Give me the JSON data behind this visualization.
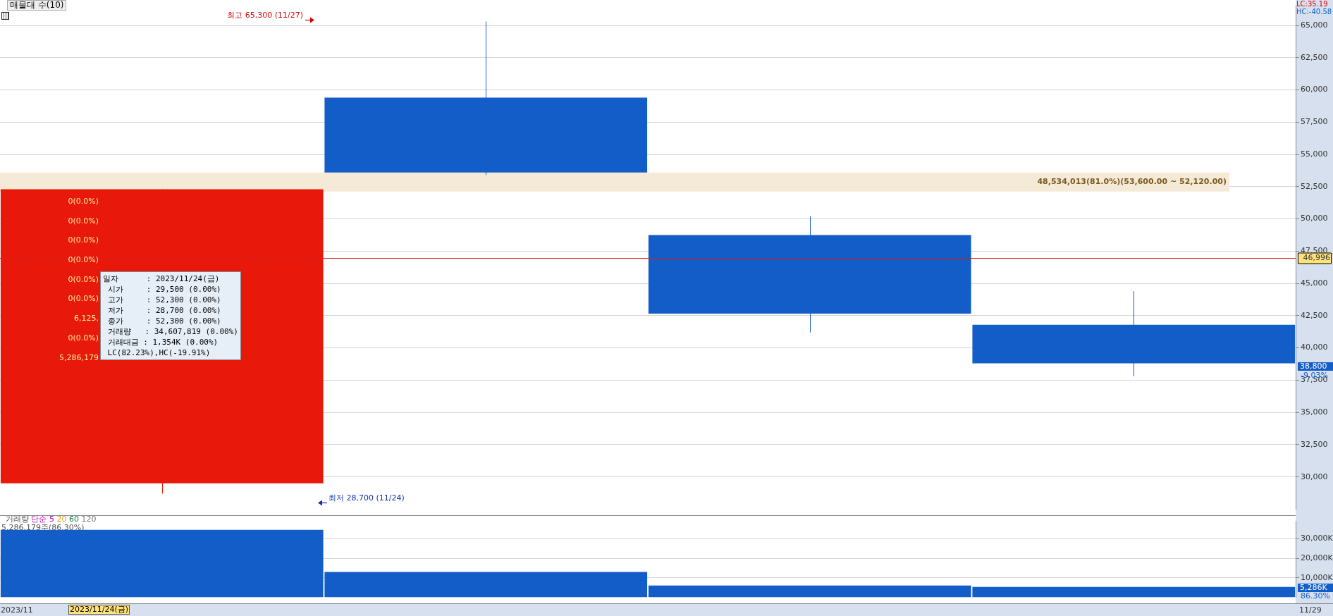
{
  "chart_data": [
    {
      "type": "candlestick",
      "title": "매물대 수(10)",
      "categories": [
        null,
        null,
        null,
        null
      ],
      "ohlc": [
        [
          29500,
          52300,
          28700,
          52300
        ],
        [
          59400,
          65300,
          53400,
          53600
        ],
        [
          48750,
          50200,
          41200,
          42650
        ],
        [
          41800,
          44400,
          37800,
          38800
        ]
      ],
      "colors": [
        "#e8190a",
        "#135dc8",
        "#135dc8",
        "#135dc8"
      ],
      "ylim": [
        27500,
        66500
      ],
      "yticks": [
        {
          "value": 30000,
          "label": "30,000"
        },
        {
          "value": 32500,
          "label": "32,500"
        },
        {
          "value": 35000,
          "label": "35,000"
        },
        {
          "value": 37500,
          "label": "37,500"
        },
        {
          "value": 40000,
          "label": "40,000"
        },
        {
          "value": 42500,
          "label": "42,500"
        },
        {
          "value": 45000,
          "label": "45,000"
        },
        {
          "value": 47500,
          "label": "47,500"
        },
        {
          "value": 50000,
          "label": "50,000"
        },
        {
          "value": 52500,
          "label": "52,500"
        },
        {
          "value": 55000,
          "label": "55,000"
        },
        {
          "value": 57500,
          "label": "57,500"
        },
        {
          "value": 60000,
          "label": "60,000"
        },
        {
          "value": 62500,
          "label": "62,500"
        },
        {
          "value": 65000,
          "label": "65,000"
        }
      ],
      "grid": "y",
      "tick_labels": "y",
      "bands": [
        {
          "axis": "y",
          "from": 52120,
          "to": 53600,
          "label": "48,534,013(81.0%)(53,600.00 ~ 52,120.00)",
          "color": "#f5e9d7"
        }
      ],
      "ref_lines": [
        {
          "axis": "y",
          "value": 46996,
          "label": "46,996",
          "color": "#d42020"
        }
      ],
      "annotations": [
        "LC:35.19",
        "HC:-40.58",
        "38,800",
        "-9.03%",
        "일자      : 2023/11/24(금)\n 시가     : 29,500 (0.00%)\n 고가     : 52,300 (0.00%)\n 저가     : 28,700 (0.00%)\n 종가     : 52,300 (0.00%)\n 거래량   : 34,607,819 (0.00%)\n 거래대금 : 1,354K (0.00%)\n LC(82.23%),HC(-19.91%)",
        "최고 65,300 (11/27)",
        "최저 28,700 (11/24)",
        "0(0.0%)",
        "0(0.0%)",
        "0(0.0%)",
        "0(0.0%)",
        "0(0.0%)",
        "0(0.0%)",
        "6,125,",
        "0(0.0%)",
        "5,286,179"
      ]
    },
    {
      "type": "bar",
      "categories": [
        null,
        null,
        null,
        null
      ],
      "values": [
        34600,
        13000,
        6000,
        5286
      ],
      "color": "#135dc8",
      "ylim": [
        0,
        39000
      ],
      "yticks": [
        {
          "value": 10000,
          "label": "10,000K"
        },
        {
          "value": 20000,
          "label": "20,000K"
        },
        {
          "value": 30000,
          "label": "30,000K"
        }
      ],
      "grid": "y",
      "tick_labels": "y",
      "annotations": [
        "거래량 단순 5 20 60 120",
        "5,286,179주(86.30%)",
        "5,286K",
        "86.30%",
        "2023/11",
        "2023/11/24(금)",
        "11/29"
      ]
    }
  ]
}
